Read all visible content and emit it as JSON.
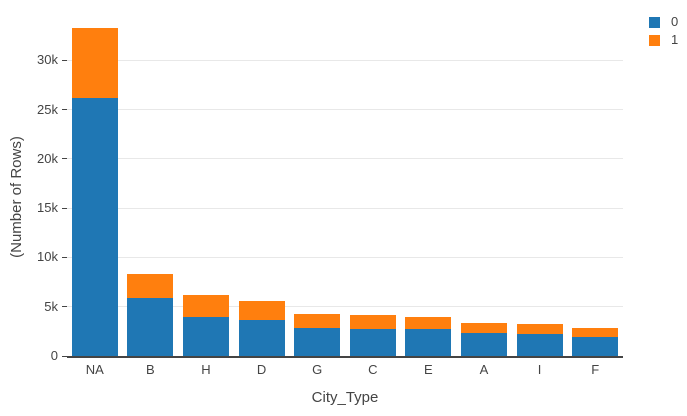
{
  "chart_data": {
    "type": "bar",
    "stacked": true,
    "xlabel": "City_Type",
    "ylabel": "(Number of Rows)",
    "categories": [
      "NA",
      "B",
      "H",
      "D",
      "G",
      "C",
      "E",
      "A",
      "I",
      "F"
    ],
    "series": [
      {
        "name": "0",
        "color": "#1f77b4",
        "values": [
          26200,
          5900,
          4000,
          3700,
          2800,
          2750,
          2700,
          2300,
          2250,
          1900
        ]
      },
      {
        "name": "1",
        "color": "#ff7f0e",
        "values": [
          7100,
          2400,
          2200,
          1850,
          1500,
          1450,
          1250,
          1050,
          1000,
          950
        ]
      }
    ],
    "ylim": [
      0,
      35000
    ],
    "yticks": [
      0,
      5000,
      10000,
      15000,
      20000,
      25000,
      30000
    ],
    "ytick_labels": [
      "0",
      "5k",
      "10k",
      "15k",
      "20k",
      "25k",
      "30k"
    ],
    "grid": true,
    "legend_position": "top-right"
  },
  "styles": {
    "background": "#ffffff",
    "grid_color": "#e8e8e8",
    "axis_line_color": "#444444",
    "text_color": "#444444",
    "series0_color": "#1f77b4",
    "series1_color": "#ff7f0e"
  }
}
